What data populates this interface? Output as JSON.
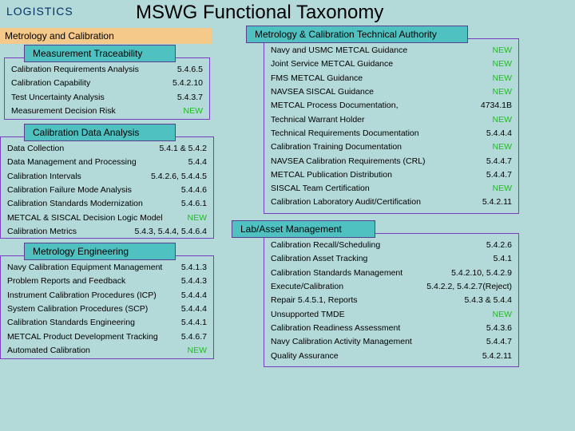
{
  "colors": {
    "background": "#b4d9d9",
    "highlight": "#f4c98a",
    "header_bg": "#4fc1c1",
    "header_border": "#5a3f8f",
    "box_border": "#7a3fc1",
    "new": "#19c119",
    "logistics": "#003366"
  },
  "logistics": "LOGISTICS",
  "title": "MSWG Functional Taxonomy",
  "highlight": "Metrology and Calibration",
  "left": {
    "s1": {
      "header": "Measurement Traceability",
      "rows": [
        {
          "label": "Calibration Requirements Analysis",
          "ref": "5.4.6.5"
        },
        {
          "label": "Calibration Capability",
          "ref": "5.4.2.10"
        },
        {
          "label": "Test Uncertainty Analysis",
          "ref": "5.4.3.7"
        },
        {
          "label": "Measurement Decision Risk",
          "ref": "NEW",
          "new": true
        }
      ]
    },
    "s2": {
      "header": "Calibration Data Analysis",
      "rows": [
        {
          "label": "Data Collection",
          "ref": "5.4.1 & 5.4.2"
        },
        {
          "label": "Data Management and Processing",
          "ref": "5.4.4"
        },
        {
          "label": "Calibration Intervals",
          "ref": "5.4.2.6, 5.4.4.5"
        },
        {
          "label": "Calibration Failure Mode Analysis",
          "ref": "5.4.4.6"
        },
        {
          "label": "Calibration Standards Modernization",
          "ref": "5.4.6.1"
        },
        {
          "label": "METCAL & SISCAL Decision Logic Model",
          "ref": "NEW",
          "new": true
        },
        {
          "label": "Calibration Metrics",
          "ref": "5.4.3, 5.4.4, 5.4.6.4"
        }
      ]
    },
    "s3": {
      "header": "Metrology Engineering",
      "rows": [
        {
          "label": "Navy Calibration Equipment Management",
          "ref": "5.4.1.3"
        },
        {
          "label": "Problem Reports and Feedback",
          "ref": "5.4.4.3"
        },
        {
          "label": "Instrument Calibration Procedures (ICP)",
          "ref": "5.4.4.4"
        },
        {
          "label": "System Calibration Procedures (SCP)",
          "ref": "5.4.4.4"
        },
        {
          "label": "Calibration Standards Engineering",
          "ref": "5.4.4.1"
        },
        {
          "label": "METCAL Product Development Tracking",
          "ref": "5.4.6.7"
        },
        {
          "label": "Automated Calibration",
          "ref": "NEW",
          "new": true
        }
      ]
    }
  },
  "right": {
    "s1": {
      "header": "Metrology & Calibration Technical Authority",
      "rows": [
        {
          "label": "Navy and USMC METCAL Guidance",
          "ref": "NEW",
          "new": true
        },
        {
          "label": "Joint Service METCAL Guidance",
          "ref": "NEW",
          "new": true
        },
        {
          "label": "FMS METCAL Guidance",
          "ref": "NEW",
          "new": true
        },
        {
          "label": "NAVSEA SISCAL Guidance",
          "ref": "NEW",
          "new": true
        },
        {
          "label": "METCAL Process Documentation,",
          "ref": "4734.1B"
        },
        {
          "label": "Technical Warrant Holder",
          "ref": "NEW",
          "new": true
        },
        {
          "label": "Technical Requirements Documentation",
          "ref": "5.4.4.4"
        },
        {
          "label": "Calibration Training Documentation",
          "ref": "NEW",
          "new": true
        },
        {
          "label": "NAVSEA Calibration Requirements (CRL)",
          "ref": "5.4.4.7"
        },
        {
          "label": "METCAL Publication Distribution",
          "ref": "5.4.4.7"
        },
        {
          "label": "SISCAL Team Certification",
          "ref": "NEW",
          "new": true
        },
        {
          "label": "Calibration Laboratory Audit/Certification",
          "ref": "5.4.2.11"
        }
      ]
    },
    "s2": {
      "header": "Lab/Asset Management",
      "rows": [
        {
          "label": "Calibration Recall/Scheduling",
          "ref": "5.4.2.6"
        },
        {
          "label": "Calibration Asset Tracking",
          "ref": "5.4.1"
        },
        {
          "label": "Calibration Standards Management",
          "ref": "5.4.2.10, 5.4.2.9"
        },
        {
          "label": "Execute/Calibration",
          "ref": "5.4.2.2, 5.4.2.7(Reject)"
        },
        {
          "label": "Repair                    5.4.5.1,            Reports",
          "ref": "5.4.3 & 5.4.4"
        },
        {
          "label": "Unsupported TMDE",
          "ref": "NEW",
          "new": true
        },
        {
          "label": "Calibration Readiness Assessment",
          "ref": "5.4.3.6"
        },
        {
          "label": "Navy Calibration Activity Management",
          "ref": "5.4.4.7"
        },
        {
          "label": "Quality Assurance",
          "ref": "5.4.2.11"
        }
      ]
    }
  }
}
